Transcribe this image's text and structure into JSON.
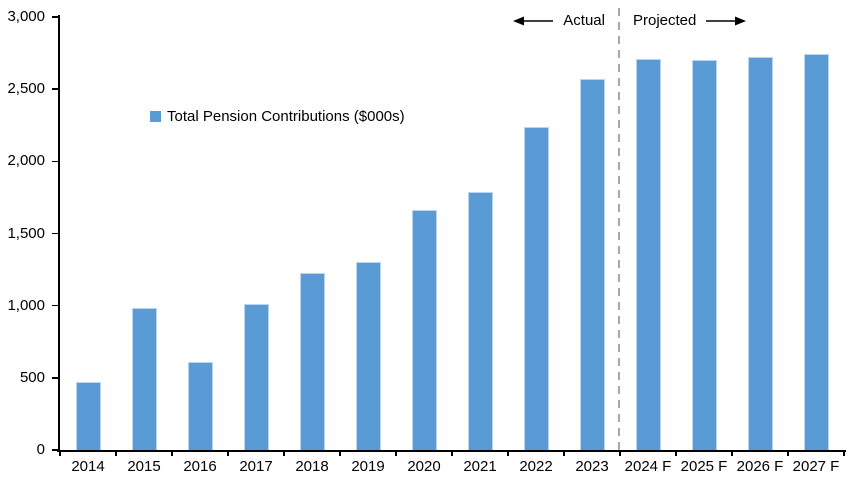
{
  "chart_data": {
    "type": "bar",
    "title": "",
    "legend": "Total Pension Contributions ($000s)",
    "categories": [
      "2014",
      "2015",
      "2016",
      "2017",
      "2018",
      "2019",
      "2020",
      "2021",
      "2022",
      "2023",
      "2024 F",
      "2025 F",
      "2026 F",
      "2027 F"
    ],
    "values": [
      470,
      985,
      610,
      1010,
      1225,
      1305,
      1660,
      1790,
      2240,
      2570,
      2710,
      2700,
      2720,
      2745
    ],
    "xlabel": "",
    "ylabel": "",
    "ylim": [
      0,
      3000
    ],
    "ytick_interval": 500,
    "ytick_labels": [
      "0",
      "500",
      "1,000",
      "1,500",
      "2,000",
      "2,500",
      "3,000"
    ],
    "grid": false,
    "legend_position": "inside-upper-left",
    "bar_color": "#5b9bd5",
    "bar_border_color": "#b9d5ef",
    "annotations": {
      "actual_label": "Actual",
      "projected_label": "Projected",
      "divider_after_category": "2023",
      "divider_color": "#a8a8a8",
      "divider_style": "dashed"
    }
  }
}
